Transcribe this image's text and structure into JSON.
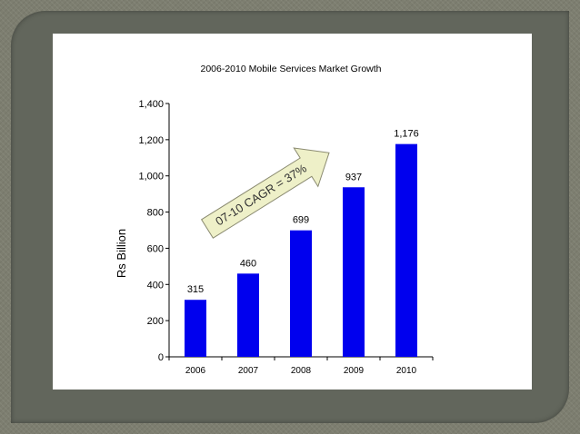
{
  "chart_data": {
    "type": "bar",
    "title": "2006-2010 Mobile Services Market Growth",
    "ylabel": "Rs Billion",
    "xlabel": "",
    "categories": [
      "2006",
      "2007",
      "2008",
      "2009",
      "2010"
    ],
    "values": [
      315,
      460,
      699,
      937,
      1176
    ],
    "value_labels": [
      "315",
      "460",
      "699",
      "937",
      "1,176"
    ],
    "ylim": [
      0,
      1400
    ],
    "yticks": [
      0,
      200,
      400,
      600,
      800,
      1000,
      1200,
      1400
    ],
    "ytick_labels": [
      "0",
      "200",
      "400",
      "600",
      "800",
      "1,000",
      "1,200",
      "1,400"
    ],
    "grid": false,
    "bar_color": "#0000ee",
    "annotation": "07-10 CAGR = 37%",
    "annotation_color": "#eef0c8"
  }
}
